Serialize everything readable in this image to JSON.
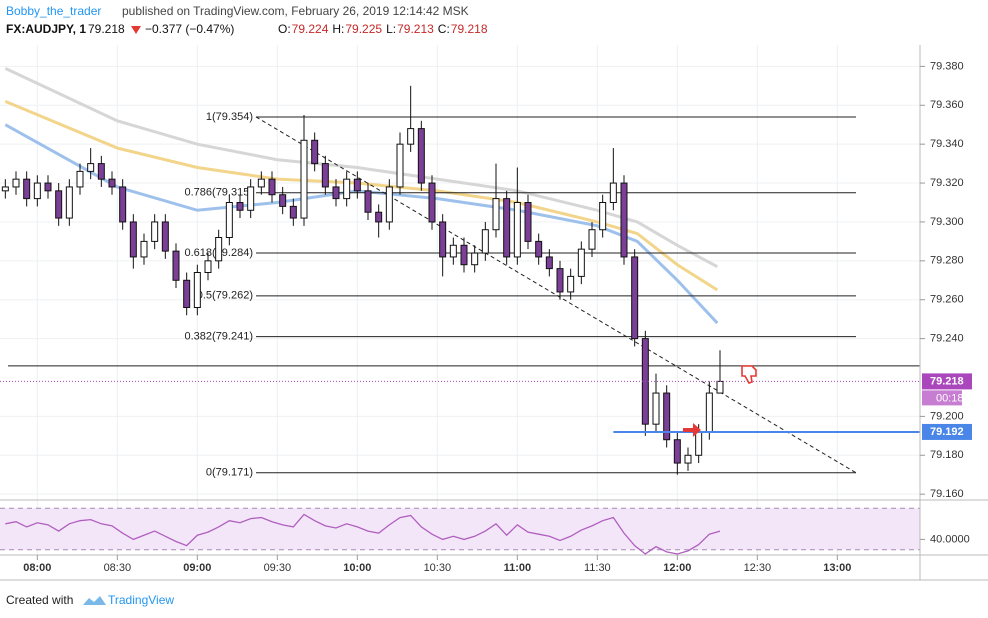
{
  "header": {
    "author": "Bobby_the_trader",
    "published": "published on TradingView.com, February 26, 2019 12:14:42 MSK",
    "symbol": "FX:AUDJPY, 1",
    "last": "79.218",
    "change": "−0.377 (−0.47%)",
    "ohlc": [
      {
        "label": "O:",
        "value": "79.224"
      },
      {
        "label": "H:",
        "value": "79.225"
      },
      {
        "label": "L:",
        "value": "79.213"
      },
      {
        "label": "C:",
        "value": "79.218"
      }
    ]
  },
  "chart_data": {
    "type": "candlestick",
    "times": [
      "07:48",
      "07:52",
      "07:56",
      "08:00",
      "08:04",
      "08:08",
      "08:12",
      "08:16",
      "08:20",
      "08:24",
      "08:28",
      "08:32",
      "08:36",
      "08:40",
      "08:44",
      "08:48",
      "08:52",
      "08:56",
      "09:00",
      "09:04",
      "09:08",
      "09:12",
      "09:16",
      "09:20",
      "09:24",
      "09:28",
      "09:32",
      "09:36",
      "09:40",
      "09:44",
      "09:48",
      "09:52",
      "09:56",
      "10:00",
      "10:04",
      "10:08",
      "10:12",
      "10:16",
      "10:20",
      "10:24",
      "10:28",
      "10:32",
      "10:36",
      "10:40",
      "10:44",
      "10:48",
      "10:52",
      "10:56",
      "11:00",
      "11:04",
      "11:08",
      "11:12",
      "11:16",
      "11:20",
      "11:24",
      "11:28",
      "11:32",
      "11:36",
      "11:40",
      "11:44",
      "11:48",
      "11:52",
      "11:56",
      "12:00",
      "12:04",
      "12:08",
      "12:12",
      "12:16"
    ],
    "open": [
      79.316,
      79.318,
      79.322,
      79.312,
      79.32,
      79.316,
      79.302,
      79.318,
      79.326,
      79.33,
      79.322,
      79.318,
      79.3,
      79.282,
      79.29,
      79.3,
      79.285,
      79.27,
      79.256,
      79.274,
      79.28,
      79.292,
      79.31,
      79.306,
      79.318,
      79.322,
      79.314,
      79.308,
      79.302,
      79.342,
      79.33,
      79.318,
      79.312,
      79.322,
      79.316,
      79.305,
      79.3,
      79.318,
      79.34,
      79.348,
      79.32,
      79.3,
      79.282,
      79.288,
      79.278,
      79.284,
      79.296,
      79.312,
      79.282,
      79.31,
      79.29,
      79.282,
      79.276,
      79.264,
      79.272,
      79.286,
      79.296,
      79.31,
      79.32,
      79.282,
      79.24,
      79.196,
      79.212,
      79.188,
      79.176,
      79.18,
      79.192,
      79.212
    ],
    "high": [
      79.322,
      79.326,
      79.326,
      79.324,
      79.324,
      79.32,
      79.322,
      79.33,
      79.338,
      79.334,
      79.326,
      79.322,
      79.304,
      79.294,
      79.304,
      79.304,
      79.289,
      79.274,
      79.278,
      79.284,
      79.296,
      79.314,
      79.314,
      79.322,
      79.326,
      79.326,
      79.318,
      79.312,
      79.355,
      79.346,
      79.334,
      79.322,
      79.326,
      79.326,
      79.32,
      79.309,
      79.322,
      79.346,
      79.37,
      79.352,
      79.324,
      79.304,
      79.292,
      79.292,
      79.288,
      79.3,
      79.33,
      79.316,
      79.328,
      79.314,
      79.294,
      79.286,
      79.28,
      79.276,
      79.29,
      79.3,
      79.314,
      79.338,
      79.324,
      79.286,
      79.244,
      79.222,
      79.216,
      79.192,
      79.184,
      79.196,
      79.218,
      79.234
    ],
    "low": [
      79.312,
      79.314,
      79.308,
      79.308,
      79.312,
      79.298,
      79.298,
      79.314,
      79.322,
      79.318,
      79.314,
      79.296,
      79.276,
      79.278,
      79.286,
      79.281,
      79.266,
      79.252,
      79.252,
      79.27,
      79.276,
      79.288,
      79.302,
      79.302,
      79.314,
      79.31,
      79.304,
      79.298,
      79.298,
      79.326,
      79.314,
      79.308,
      79.308,
      79.312,
      79.301,
      79.292,
      79.296,
      79.314,
      79.336,
      79.316,
      79.296,
      79.272,
      79.278,
      79.274,
      79.274,
      79.28,
      79.292,
      79.278,
      79.278,
      79.286,
      79.278,
      79.272,
      79.26,
      79.26,
      79.268,
      79.282,
      79.292,
      79.306,
      79.278,
      79.236,
      79.19,
      79.192,
      79.184,
      79.17,
      79.172,
      79.176,
      79.188,
      79.214
    ],
    "close": [
      79.318,
      79.322,
      79.312,
      79.32,
      79.316,
      79.302,
      79.318,
      79.326,
      79.33,
      79.322,
      79.318,
      79.3,
      79.282,
      79.29,
      79.3,
      79.285,
      79.27,
      79.256,
      79.274,
      79.28,
      79.292,
      79.31,
      79.306,
      79.318,
      79.322,
      79.314,
      79.308,
      79.302,
      79.342,
      79.33,
      79.318,
      79.312,
      79.322,
      79.316,
      79.305,
      79.3,
      79.318,
      79.34,
      79.348,
      79.32,
      79.3,
      79.282,
      79.288,
      79.278,
      79.284,
      79.296,
      79.312,
      79.282,
      79.31,
      79.29,
      79.282,
      79.276,
      79.264,
      79.272,
      79.286,
      79.296,
      79.31,
      79.32,
      79.282,
      79.24,
      79.196,
      79.212,
      79.188,
      79.176,
      79.18,
      79.192,
      79.212,
      79.218
    ],
    "up_color": "#ffffff",
    "down_color": "#7b3f98",
    "moving_averages": [
      {
        "color": "#d6d6d6",
        "times": [
          "07:48",
          "08:30",
          "09:00",
          "09:30",
          "10:00",
          "10:30",
          "11:00",
          "11:30",
          "11:45",
          "12:00",
          "12:15"
        ],
        "values": [
          79.379,
          79.352,
          79.34,
          79.332,
          79.328,
          79.322,
          79.316,
          79.306,
          79.3,
          79.288,
          79.277
        ]
      },
      {
        "color": "#f2d58a",
        "times": [
          "07:48",
          "08:30",
          "09:00",
          "09:30",
          "10:00",
          "10:30",
          "11:00",
          "11:30",
          "11:45",
          "12:00",
          "12:15"
        ],
        "values": [
          79.362,
          79.338,
          79.328,
          79.322,
          79.32,
          79.316,
          79.31,
          79.3,
          79.294,
          79.278,
          79.265
        ]
      },
      {
        "color": "#9ec1ec",
        "times": [
          "07:48",
          "08:30",
          "09:00",
          "09:30",
          "10:00",
          "10:30",
          "11:00",
          "11:30",
          "11:45",
          "12:00",
          "12:15"
        ],
        "values": [
          79.35,
          79.318,
          79.306,
          79.31,
          79.316,
          79.312,
          79.306,
          79.298,
          79.29,
          79.27,
          79.248
        ]
      }
    ],
    "fib": {
      "start": "09:22",
      "end": "13:07",
      "levels": [
        {
          "label": "1(79.354)",
          "value": 79.354
        },
        {
          "label": "0.786(79.315)",
          "value": 79.315
        },
        {
          "label": "0.618(79.284)",
          "value": 79.284
        },
        {
          "label": "0.5(79.262)",
          "value": 79.262
        },
        {
          "label": "0.382(79.241)",
          "value": 79.241
        },
        {
          "label": "0(79.171)",
          "value": 79.171
        }
      ]
    },
    "hline": 79.226,
    "support": {
      "start": "11:36",
      "value": 79.192,
      "color": "#4a86e8"
    },
    "last_price": 79.218,
    "last_color": "#ab47bc",
    "countdown": "00:18",
    "xlim": [
      "07:46",
      "13:31"
    ],
    "xticks": [
      "08:00",
      "08:30",
      "09:00",
      "09:30",
      "10:00",
      "10:30",
      "11:00",
      "11:30",
      "12:00",
      "12:30",
      "13:00"
    ],
    "ylim": [
      79.157,
      79.391
    ],
    "yticks": [
      {
        "value": 79.38,
        "label": "79.380"
      },
      {
        "value": 79.36,
        "label": "79.360"
      },
      {
        "value": 79.34,
        "label": "79.340"
      },
      {
        "value": 79.32,
        "label": "79.320"
      },
      {
        "value": 79.3,
        "label": "79.300"
      },
      {
        "value": 79.28,
        "label": "79.280"
      },
      {
        "value": 79.26,
        "label": "79.260"
      },
      {
        "value": 79.24,
        "label": "79.240"
      },
      {
        "value": 79.2,
        "label": "79.200"
      },
      {
        "value": 79.18,
        "label": "79.180"
      },
      {
        "value": 79.16,
        "label": "79.160"
      }
    ],
    "grid": true,
    "rsi": {
      "color": "#b05fbf",
      "values": [
        55,
        57,
        52,
        56,
        54,
        48,
        55,
        58,
        59,
        55,
        53,
        46,
        40,
        44,
        48,
        43,
        38,
        34,
        44,
        47,
        52,
        58,
        56,
        60,
        61,
        57,
        54,
        52,
        64,
        58,
        53,
        51,
        55,
        52,
        48,
        46,
        54,
        61,
        63,
        52,
        45,
        40,
        43,
        40,
        43,
        48,
        55,
        44,
        54,
        47,
        45,
        43,
        39,
        43,
        49,
        53,
        58,
        61,
        46,
        34,
        26,
        33,
        28,
        26,
        29,
        35,
        45,
        48
      ],
      "ylim": [
        25,
        75
      ],
      "bands": [
        70,
        30
      ],
      "yticks": [
        {
          "value": 40,
          "label": "40.0000"
        }
      ]
    }
  },
  "footer": {
    "created": "Created with",
    "brand": "TradingView"
  }
}
